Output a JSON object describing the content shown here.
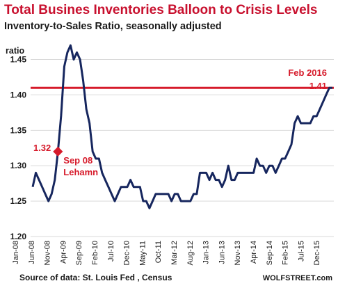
{
  "header": {
    "title": "Total Busines Inventories Balloon to Crisis Levels",
    "subtitle": "Inventory-to-Sales Ratio, seasonally adjusted"
  },
  "footer": {
    "source": "Source of data: St. Louis Fed , Census",
    "brand": "WOLFSTREET.com"
  },
  "colors": {
    "series": "#16265e",
    "reference": "#d61a2a",
    "accent_text": "#d61a2a",
    "title": "#c8102e"
  },
  "chart_data": {
    "type": "line",
    "ylabel": "ratio",
    "ylim": [
      1.2,
      1.48
    ],
    "yticks": [
      1.2,
      1.25,
      1.3,
      1.35,
      1.4,
      1.45
    ],
    "xlabels": [
      "Jan-08",
      "Jun-08",
      "Nov-08",
      "Apr-09",
      "Sep-09",
      "Feb-10",
      "Jul-10",
      "Dec-10",
      "May-11",
      "Oct-11",
      "Mar-12",
      "Aug-12",
      "Jan-13",
      "Jun-13",
      "Nov-13",
      "Apr-14",
      "Sep-14",
      "Feb-15",
      "Jul-15",
      "Dec-15"
    ],
    "grid": true,
    "series": [
      {
        "values": [
          1.27,
          1.29,
          1.28,
          1.27,
          1.26,
          1.25,
          1.26,
          1.28,
          1.32,
          1.37,
          1.44,
          1.46,
          1.47,
          1.45,
          1.46,
          1.45,
          1.42,
          1.38,
          1.36,
          1.32,
          1.31,
          1.31,
          1.29,
          1.28,
          1.27,
          1.26,
          1.25,
          1.26,
          1.27,
          1.27,
          1.27,
          1.28,
          1.27,
          1.27,
          1.27,
          1.25,
          1.25,
          1.24,
          1.25,
          1.26,
          1.26,
          1.26,
          1.26,
          1.26,
          1.25,
          1.26,
          1.26,
          1.25,
          1.25,
          1.25,
          1.25,
          1.26,
          1.26,
          1.29,
          1.29,
          1.29,
          1.28,
          1.29,
          1.28,
          1.28,
          1.27,
          1.28,
          1.3,
          1.28,
          1.28,
          1.29,
          1.29,
          1.29,
          1.29,
          1.29,
          1.29,
          1.31,
          1.3,
          1.3,
          1.29,
          1.3,
          1.3,
          1.29,
          1.3,
          1.31,
          1.31,
          1.32,
          1.33,
          1.36,
          1.37,
          1.36,
          1.36,
          1.36,
          1.36,
          1.37,
          1.37,
          1.38,
          1.39,
          1.4,
          1.41,
          1.41
        ]
      }
    ],
    "reference_line": {
      "value": 1.41,
      "label": "Feb 2016",
      "value_label": "1.41"
    },
    "annotation": {
      "index": 8,
      "value": 1.32,
      "value_label": "1.32",
      "label_line1": "Sep 08",
      "label_line2": "Lehamn"
    }
  }
}
